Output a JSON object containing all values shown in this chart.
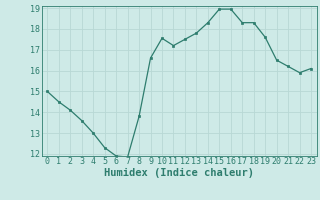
{
  "x": [
    0,
    1,
    2,
    3,
    4,
    5,
    6,
    7,
    8,
    9,
    10,
    11,
    12,
    13,
    14,
    15,
    16,
    17,
    18,
    19,
    20,
    21,
    22,
    23
  ],
  "y": [
    15.0,
    14.5,
    14.1,
    13.6,
    13.0,
    12.3,
    11.9,
    11.85,
    13.8,
    16.6,
    17.55,
    17.2,
    17.5,
    17.8,
    18.3,
    18.95,
    18.95,
    18.3,
    18.3,
    17.6,
    16.5,
    16.2,
    15.9,
    16.1
  ],
  "xlabel": "Humidex (Indice chaleur)",
  "ylim": [
    12,
    19
  ],
  "xlim": [
    -0.5,
    23.5
  ],
  "yticks": [
    12,
    13,
    14,
    15,
    16,
    17,
    18,
    19
  ],
  "xticks": [
    0,
    1,
    2,
    3,
    4,
    5,
    6,
    7,
    8,
    9,
    10,
    11,
    12,
    13,
    14,
    15,
    16,
    17,
    18,
    19,
    20,
    21,
    22,
    23
  ],
  "line_color": "#2e7d6e",
  "marker": "s",
  "marker_size": 2.0,
  "bg_color": "#ceeae7",
  "grid_color": "#b8d8d5",
  "xlabel_fontsize": 7.5,
  "tick_fontsize": 6.0
}
